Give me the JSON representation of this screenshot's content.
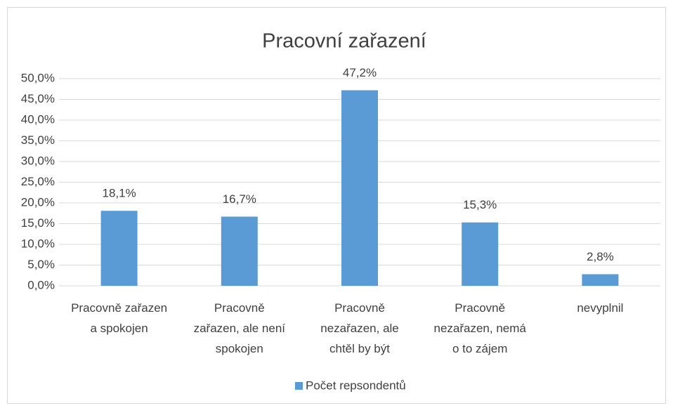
{
  "chart_data": {
    "type": "bar",
    "title": "Pracovní zařazení",
    "categories": [
      "Pracovně zařazen a spokojen",
      "Pracovně zařazen, ale není spokojen",
      "Pracovně nezařazen, ale chtěl by být",
      "Pracovně nezařazen, nemá o to zájem",
      "nevyplnil"
    ],
    "series": [
      {
        "name": "Počet repsondentů",
        "color": "#5b9bd5",
        "values": [
          18.1,
          16.7,
          47.2,
          15.3,
          2.8
        ],
        "value_labels": [
          "18,1%",
          "16,7%",
          "47,2%",
          "15,3%",
          "2,8%"
        ]
      }
    ],
    "ylim": [
      0,
      50
    ],
    "yticks": [
      {
        "value": 0,
        "label": "0,0%"
      },
      {
        "value": 5,
        "label": "5,0%"
      },
      {
        "value": 10,
        "label": "10,0%"
      },
      {
        "value": 15,
        "label": "15,0%"
      },
      {
        "value": 20,
        "label": "20,0%"
      },
      {
        "value": 25,
        "label": "25,0%"
      },
      {
        "value": 30,
        "label": "30,0%"
      },
      {
        "value": 35,
        "label": "35,0%"
      },
      {
        "value": 40,
        "label": "40,0%"
      },
      {
        "value": 45,
        "label": "45,0%"
      },
      {
        "value": 50,
        "label": "50,0%"
      }
    ],
    "grid": true,
    "legend": "bottom"
  }
}
